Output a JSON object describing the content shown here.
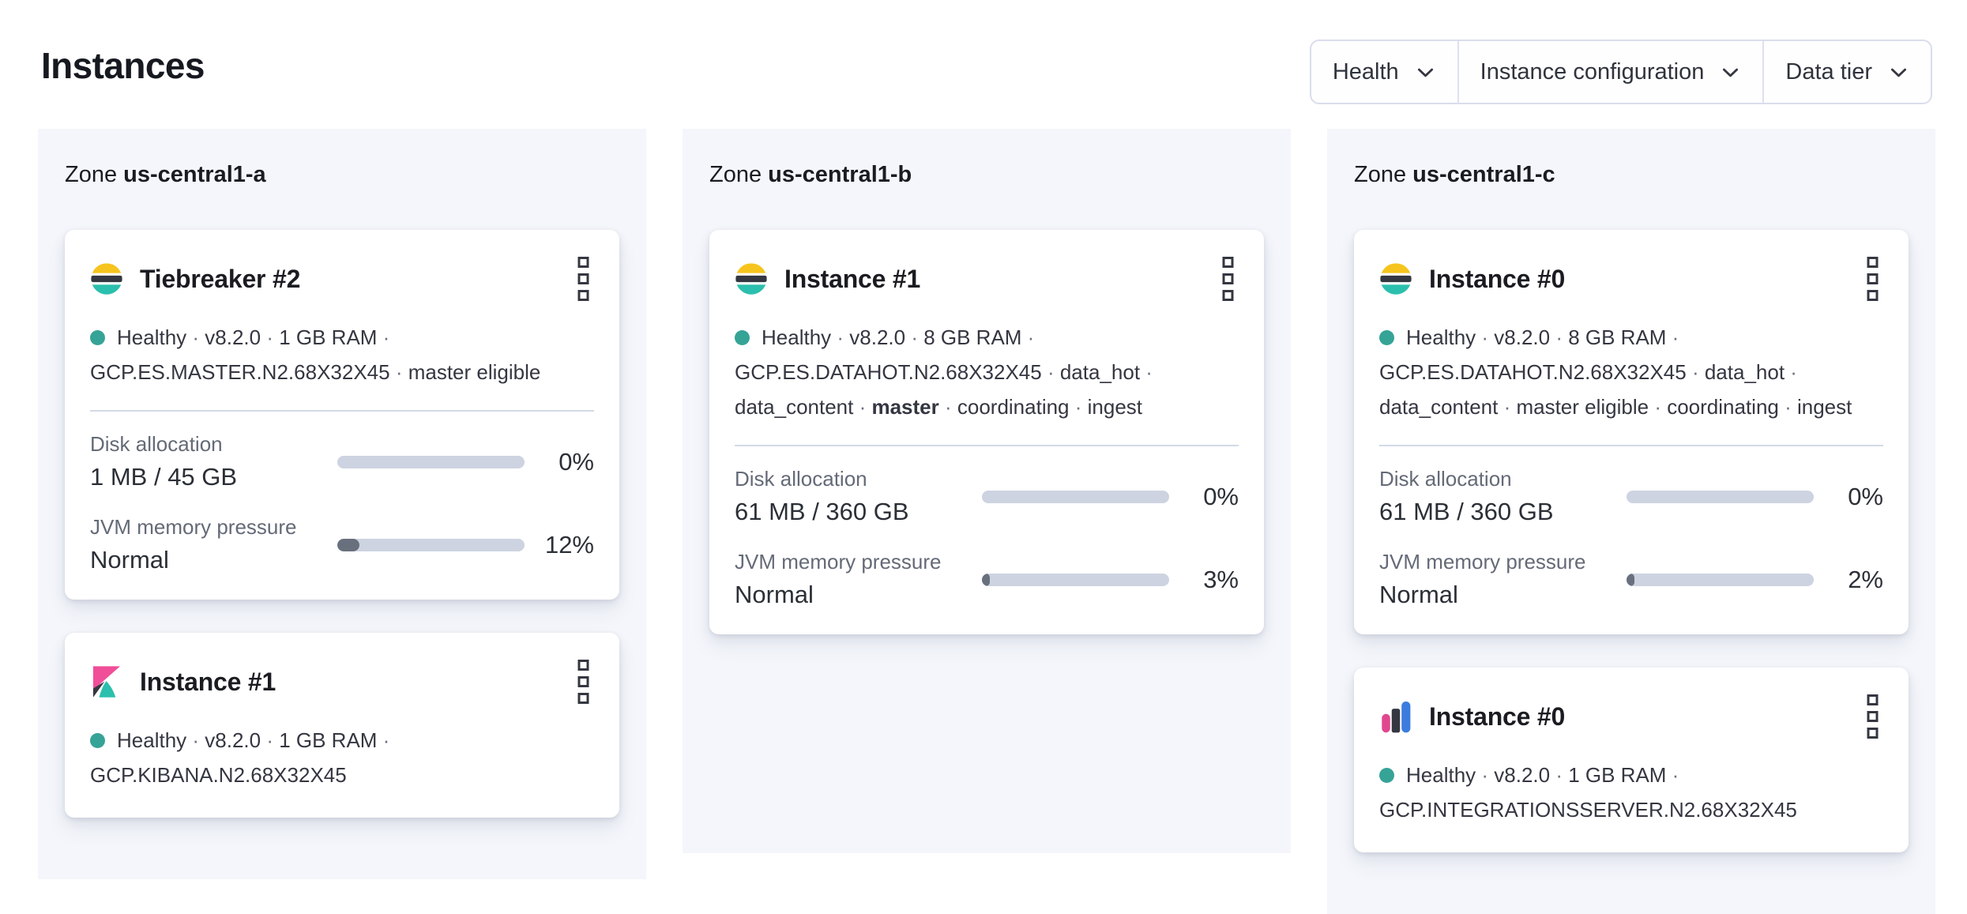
{
  "page": {
    "title": "Instances"
  },
  "filters": {
    "chevron_icon": "chevron-down-icon",
    "items": [
      {
        "id": "health",
        "label": "Health"
      },
      {
        "id": "instance-configuration",
        "label": "Instance configuration"
      },
      {
        "id": "data-tier",
        "label": "Data tier"
      }
    ]
  },
  "colors": {
    "es_yellow": "#F6C41D",
    "es_dark": "#343741",
    "es_teal": "#2BBFAE",
    "kibana_pink": "#F04E98",
    "kibana_teal": "#2BBFAE",
    "kibana_dark": "#343741",
    "integrations_pink": "#E1478F",
    "integrations_dark": "#343741",
    "integrations_blue": "#3B7CDE",
    "health_dot": "#36A397",
    "bar_track": "#CDD3E0",
    "bar_fill": "#69707D",
    "zone_bg": "#F4F6FB",
    "divider": "#D3DAE6",
    "text_dark": "#1A1C21",
    "text_body": "#343741",
    "text_subdued": "#646A77"
  },
  "zones": [
    {
      "label": "Zone",
      "name": "us-central1-a",
      "cards": [
        {
          "icon": "elasticsearch-logo",
          "title": "Tiebreaker #2",
          "menu_icon": "boxes-vertical-icon",
          "health_dot": true,
          "meta": [
            {
              "t": "Healthy"
            },
            {
              "t": "v8.2.0"
            },
            {
              "t": "1 GB RAM"
            },
            {
              "t": "GCP.ES.MASTER.N2.68X32X45"
            },
            {
              "t": "master eligible"
            }
          ],
          "metrics": [
            {
              "id": "disk-allocation",
              "label": "Disk allocation",
              "value": "1 MB / 45 GB",
              "percent_label": "0%",
              "fill": 0
            },
            {
              "id": "jvm-memory-pressure",
              "label": "JVM memory pressure",
              "value": "Normal",
              "percent_label": "12%",
              "fill": 12
            }
          ]
        },
        {
          "icon": "kibana-logo",
          "title": "Instance #1",
          "menu_icon": "boxes-vertical-icon",
          "health_dot": true,
          "meta": [
            {
              "t": "Healthy"
            },
            {
              "t": "v8.2.0"
            },
            {
              "t": "1 GB RAM"
            },
            {
              "t": "GCP.KIBANA.N2.68X32X45"
            }
          ],
          "metrics": []
        }
      ]
    },
    {
      "label": "Zone",
      "name": "us-central1-b",
      "cards": [
        {
          "icon": "elasticsearch-logo",
          "title": "Instance #1",
          "menu_icon": "boxes-vertical-icon",
          "health_dot": true,
          "meta": [
            {
              "t": "Healthy"
            },
            {
              "t": "v8.2.0"
            },
            {
              "t": "8 GB RAM"
            },
            {
              "t": "GCP.ES.DATAHOT.N2.68X32X45"
            },
            {
              "t": "data_hot"
            },
            {
              "t": "data_content"
            },
            {
              "t": "master",
              "bold": true
            },
            {
              "t": "coordinating"
            },
            {
              "t": "ingest"
            }
          ],
          "metrics": [
            {
              "id": "disk-allocation",
              "label": "Disk allocation",
              "value": "61 MB / 360 GB",
              "percent_label": "0%",
              "fill": 0
            },
            {
              "id": "jvm-memory-pressure",
              "label": "JVM memory pressure",
              "value": "Normal",
              "percent_label": "3%",
              "fill": 3
            }
          ]
        }
      ]
    },
    {
      "label": "Zone",
      "name": "us-central1-c",
      "cards": [
        {
          "icon": "elasticsearch-logo",
          "title": "Instance #0",
          "menu_icon": "boxes-vertical-icon",
          "health_dot": true,
          "meta": [
            {
              "t": "Healthy"
            },
            {
              "t": "v8.2.0"
            },
            {
              "t": "8 GB RAM"
            },
            {
              "t": "GCP.ES.DATAHOT.N2.68X32X45"
            },
            {
              "t": "data_hot"
            },
            {
              "t": "data_content"
            },
            {
              "t": "master eligible"
            },
            {
              "t": "coordinating"
            },
            {
              "t": "ingest"
            }
          ],
          "metrics": [
            {
              "id": "disk-allocation",
              "label": "Disk allocation",
              "value": "61 MB / 360 GB",
              "percent_label": "0%",
              "fill": 0
            },
            {
              "id": "jvm-memory-pressure",
              "label": "JVM memory pressure",
              "value": "Normal",
              "percent_label": "2%",
              "fill": 2
            }
          ]
        },
        {
          "icon": "integrations-server-logo",
          "title": "Instance #0",
          "menu_icon": "boxes-vertical-icon",
          "health_dot": true,
          "meta": [
            {
              "t": "Healthy"
            },
            {
              "t": "v8.2.0"
            },
            {
              "t": "1 GB RAM"
            },
            {
              "t": "GCP.INTEGRATIONSSERVER.N2.68X32X45"
            }
          ],
          "metrics": []
        }
      ]
    }
  ]
}
